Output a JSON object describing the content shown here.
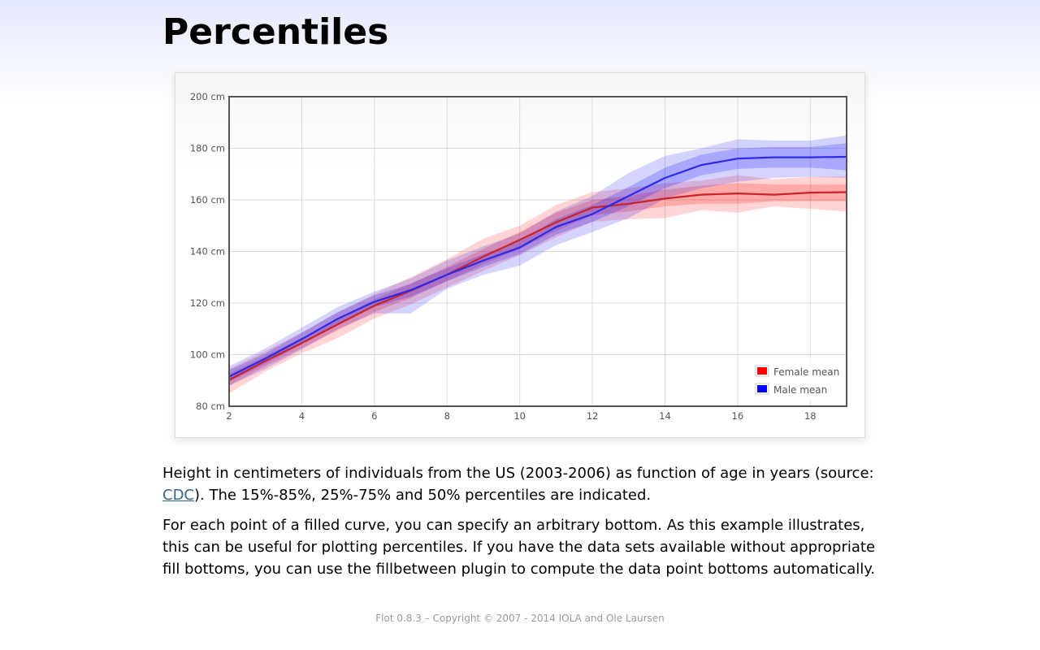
{
  "header": {
    "title": "Percentiles"
  },
  "description": {
    "p1_before_link": "Height in centimeters of individuals from the US (2003-2006) as function of age in years (source: ",
    "p1_link": "CDC",
    "p1_after_link": "). The 15%-85%, 25%-75% and 50% percentiles are indicated.",
    "p2": "For each point of a filled curve, you can specify an arbitrary bottom. As this example illustrates, this can be useful for plotting percentiles. If you have the data sets available without appropriate fill bottoms, you can use the fillbetween plugin to compute the data point bottoms automatically."
  },
  "footer": {
    "text": "Flot 0.8.3 – Copyright © 2007 - 2014 IOLA and Ole Laursen"
  },
  "chart_data": {
    "type": "area",
    "xlim": [
      2,
      19
    ],
    "ylim": [
      80,
      200
    ],
    "x_ticks": [
      2,
      4,
      6,
      8,
      10,
      12,
      14,
      16,
      18
    ],
    "y_ticks": [
      80,
      100,
      120,
      140,
      160,
      180,
      200
    ],
    "y_tick_suffix": " cm",
    "grid": true,
    "legend_position": "bottom-right",
    "x": [
      2,
      3,
      4,
      5,
      6,
      7,
      8,
      9,
      10,
      11,
      12,
      13,
      14,
      15,
      16,
      17,
      18,
      19
    ],
    "series": [
      {
        "name": "Female mean",
        "color": "#ff0000",
        "mean": [
          90.2,
          97.6,
          104.5,
          111.8,
          119.0,
          124.8,
          131.0,
          138.0,
          144.5,
          151.3,
          157.0,
          158.5,
          160.5,
          162.0,
          162.5,
          162.0,
          162.8,
          163.0
        ],
        "p25": [
          88.0,
          95.5,
          102.5,
          109.5,
          116.5,
          122.0,
          128.5,
          135.0,
          141.0,
          148.0,
          154.0,
          155.5,
          157.5,
          158.5,
          158.5,
          159.5,
          159.5,
          159.5
        ],
        "p75": [
          92.5,
          99.5,
          106.5,
          114.0,
          121.5,
          127.5,
          134.0,
          141.0,
          147.5,
          155.0,
          160.0,
          161.5,
          164.0,
          165.5,
          166.5,
          166.0,
          166.0,
          166.0
        ],
        "p15": [
          85.0,
          93.5,
          100.5,
          106.5,
          114.0,
          119.5,
          126.0,
          132.5,
          138.5,
          145.5,
          151.5,
          152.5,
          153.0,
          156.0,
          155.0,
          157.5,
          156.5,
          155.5
        ],
        "p85": [
          94.5,
          101.5,
          108.5,
          116.5,
          123.5,
          130.0,
          137.0,
          145.0,
          150.0,
          158.0,
          163.0,
          164.5,
          166.5,
          167.5,
          169.5,
          168.0,
          169.0,
          169.0
        ]
      },
      {
        "name": "Male mean",
        "color": "#0000ff",
        "mean": [
          91.5,
          98.5,
          106.0,
          114.0,
          120.5,
          125.0,
          131.0,
          136.5,
          141.5,
          149.5,
          154.5,
          161.5,
          168.5,
          173.5,
          176.0,
          176.5,
          176.5,
          176.7
        ],
        "p25": [
          89.5,
          96.5,
          104.0,
          112.0,
          118.5,
          122.5,
          128.5,
          134.0,
          139.0,
          146.5,
          151.5,
          157.5,
          164.5,
          169.5,
          172.0,
          172.5,
          172.5,
          171.5
        ],
        "p75": [
          94.0,
          100.5,
          108.5,
          116.5,
          123.0,
          127.5,
          133.5,
          139.0,
          144.0,
          152.5,
          158.0,
          165.0,
          172.5,
          177.5,
          180.0,
          180.5,
          180.5,
          182.0
        ],
        "p15": [
          88.0,
          94.5,
          102.0,
          110.0,
          116.0,
          116.0,
          125.5,
          131.0,
          134.5,
          142.5,
          147.5,
          153.0,
          160.5,
          164.5,
          167.0,
          168.5,
          169.0,
          168.5
        ],
        "p85": [
          95.5,
          102.5,
          110.5,
          118.5,
          124.5,
          129.5,
          136.5,
          142.0,
          147.0,
          155.5,
          161.5,
          170.5,
          177.0,
          180.0,
          183.5,
          183.0,
          183.0,
          185.0
        ]
      }
    ]
  }
}
